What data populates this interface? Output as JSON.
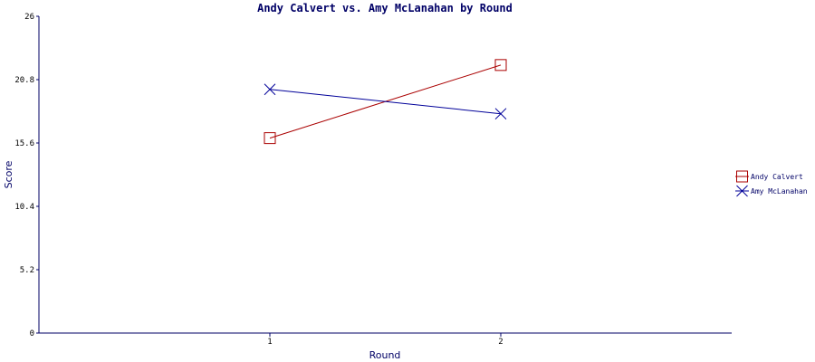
{
  "chart_data": {
    "type": "line",
    "title": "Andy Calvert vs. Amy McLanahan by Round",
    "xlabel": "Round",
    "ylabel": "Score",
    "x": [
      1,
      2
    ],
    "xticks": [
      "1",
      "2"
    ],
    "ylim": [
      0,
      26
    ],
    "yticks": [
      "0",
      "5.2",
      "10.4",
      "15.6",
      "20.8",
      "26"
    ],
    "ytick_values": [
      0,
      5.2,
      10.4,
      15.6,
      20.8,
      26
    ],
    "grid": false,
    "legend_position": "right",
    "series": [
      {
        "name": "Andy Calvert",
        "values": [
          16,
          22
        ],
        "color": "#aa0000",
        "marker": "square"
      },
      {
        "name": "Amy McLanahan",
        "values": [
          20,
          18
        ],
        "color": "#000099",
        "marker": "x"
      }
    ]
  }
}
